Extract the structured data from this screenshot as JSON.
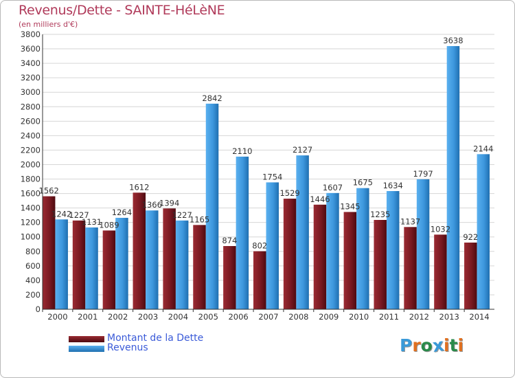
{
  "title": "Revenus/Dette - SAINTE-HéLèNE",
  "subtitle": "(en milliers d'€)",
  "colors": {
    "dette": "#7a1a22",
    "revenus": "#3d97dd",
    "title": "#b03a5a",
    "legend_text": "#3a5ad8"
  },
  "logo": {
    "text": "Proxiti",
    "letters": [
      "P",
      "r",
      "o",
      "x",
      "i",
      "t",
      "i"
    ],
    "colors": [
      "#3a9ad8",
      "#e07020",
      "#2a8a4a",
      "#3a9ad8",
      "#e07020",
      "#2a8a4a",
      "#e07020"
    ]
  },
  "chart_data": {
    "type": "bar",
    "title": "Revenus/Dette - SAINTE-HéLèNE",
    "subtitle": "(en milliers d'€)",
    "xlabel": "",
    "ylabel": "",
    "ylim": [
      0,
      3800
    ],
    "ytick_step": 200,
    "yticks": [
      "0",
      "200",
      "400",
      "600",
      "800",
      "1000",
      "1200",
      "1400",
      "1600",
      "1800",
      "2000",
      "2200",
      "2400",
      "2600",
      "2800",
      "3000",
      "3200",
      "3400",
      "3600",
      "3800"
    ],
    "grid": true,
    "legend_position": "bottom-left",
    "categories": [
      "2000",
      "2001",
      "2002",
      "2003",
      "2004",
      "2005",
      "2006",
      "2007",
      "2008",
      "2009",
      "2010",
      "2011",
      "2012",
      "2013",
      "2014"
    ],
    "series": [
      {
        "name": "Montant de la Dette",
        "values": [
          1562,
          1227,
          1089,
          1612,
          1394,
          1165,
          874,
          802,
          1529,
          1446,
          1345,
          1235,
          1137,
          1032,
          922
        ],
        "labels": [
          "1562",
          "1227",
          "1089",
          "1612",
          "1394",
          "1165",
          "874",
          "802",
          "1529",
          "1446",
          "1345",
          "1235",
          "1137",
          "1032",
          "922"
        ]
      },
      {
        "name": "Revenus",
        "values": [
          1242,
          1131,
          1264,
          1366,
          1227,
          2842,
          2110,
          1754,
          2127,
          1607,
          1675,
          1634,
          1797,
          3638,
          2144
        ],
        "labels": [
          "1242",
          "1131",
          "1264",
          "1366",
          "1227",
          "2842",
          "2110",
          "1754",
          "2127",
          "1607",
          "1675",
          "1634",
          "1797",
          "3638",
          "2144"
        ]
      }
    ]
  }
}
